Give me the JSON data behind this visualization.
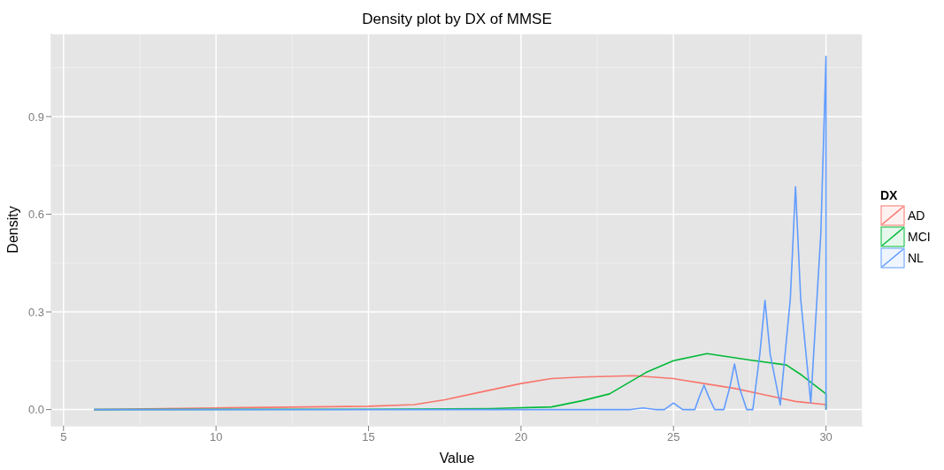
{
  "chart_data": {
    "type": "line",
    "title": "Density plot by DX of MMSE",
    "xlabel": "Value",
    "ylabel": "Density",
    "legend_title": "DX",
    "legend": "right",
    "grid": true,
    "xlim": [
      4.6,
      31.2
    ],
    "ylim": [
      -0.05,
      1.155
    ],
    "xticks": [
      5,
      10,
      15,
      20,
      25,
      30
    ],
    "yticks": [
      {
        "value": 0,
        "label": "0.0"
      },
      0.3,
      0.6,
      0.9
    ],
    "series": [
      {
        "name": "AD",
        "color": "#f8766d",
        "x": [
          6,
          10,
          15,
          16.5,
          17.5,
          18.5,
          20,
          21,
          22,
          23.7,
          25,
          26,
          27,
          28,
          29,
          30,
          30
        ],
        "values": [
          0,
          0.005,
          0.01,
          0.015,
          0.03,
          0.05,
          0.08,
          0.095,
          0.1,
          0.104,
          0.095,
          0.08,
          0.065,
          0.045,
          0.025,
          0.015,
          0
        ]
      },
      {
        "name": "MCI",
        "color": "#00ba38",
        "x": [
          6,
          15,
          19,
          21,
          22,
          22.9,
          24.1,
          25,
          26.1,
          27.5,
          28.7,
          29.2,
          30,
          30
        ],
        "values": [
          0,
          0.001,
          0.003,
          0.008,
          0.027,
          0.048,
          0.114,
          0.15,
          0.172,
          0.152,
          0.137,
          0.106,
          0.048,
          0
        ]
      },
      {
        "name": "NL",
        "color": "#619cff",
        "x": [
          6,
          23.6,
          24,
          24.4,
          24.7,
          25,
          25.3,
          25.7,
          25.85,
          26,
          26.15,
          26.35,
          26.65,
          26.85,
          27,
          27.15,
          27.4,
          27.6,
          27.83,
          28,
          28.17,
          28.5,
          28.83,
          29,
          29.17,
          29.5,
          29.83,
          30,
          30
        ],
        "values": [
          0,
          0,
          0.005,
          0,
          0,
          0.02,
          0,
          0,
          0.04,
          0.075,
          0.04,
          0,
          0,
          0.07,
          0.14,
          0.07,
          0,
          0,
          0.17,
          0.335,
          0.17,
          0.014,
          0.34,
          0.685,
          0.34,
          0.021,
          0.54,
          1.085,
          0
        ]
      }
    ]
  }
}
